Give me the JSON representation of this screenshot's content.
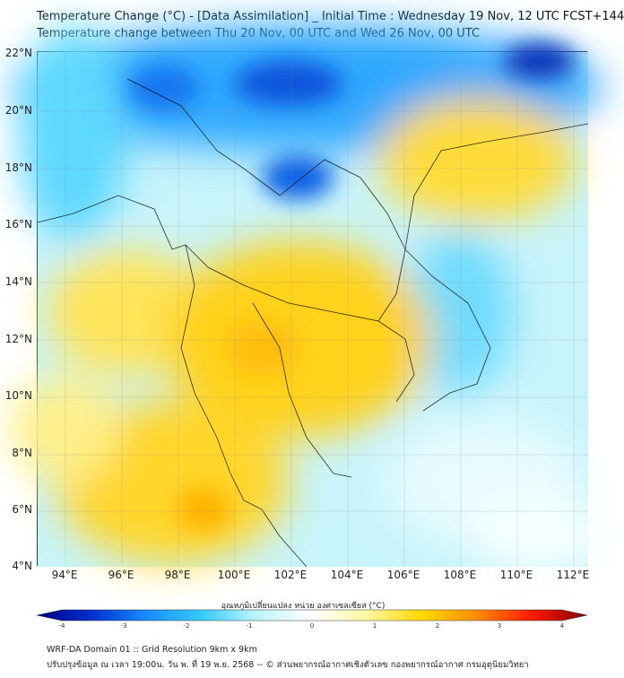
{
  "title_line1": "Temperature Change (°C) - [Data Assimilation] _ Initial Time : Wednesday 19 Nov, 12 UTC FCST+144",
  "title_line2": "Temperature change between Thu 20 Nov, 00 UTC and Wed 26 Nov, 00 UTC",
  "lat_labels": [
    "22°N",
    "20°N",
    "18°N",
    "16°N",
    "14°N",
    "12°N",
    "10°N",
    "8°N",
    "6°N",
    "4°N"
  ],
  "lon_labels": [
    "94°E",
    "96°E",
    "98°E",
    "100°E",
    "102°E",
    "104°E",
    "106°E",
    "108°E",
    "110°E",
    "112°E"
  ],
  "colorbar": {
    "label": "อุณหภูมิเปลี่ยนแปลง หน่วย องศาเซลเซียส (°C)",
    "ticks": [
      "-4",
      "-3",
      "-2",
      "-1",
      "0",
      "1",
      "2",
      "3",
      "4"
    ],
    "colors": [
      "#00007f",
      "#0030d0",
      "#1a8cff",
      "#33ccff",
      "#bff4ff",
      "#ffffff",
      "#fff7a0",
      "#ffd800",
      "#ff8c00",
      "#ff1a00",
      "#7f0000"
    ]
  },
  "footer_line1": "WRF-DA Domain 01 :: Grid Resolution 9km x 9km",
  "footer_line2": "ปรับปรุงข้อมูล ณ เวลา 19:00น. วัน พ. ที่ 19 พ.ย. 2568 -- © ส่วนพยากรณ์อากาศเชิงตัวเลข กองพยากรณ์อากาศ กรมอุตุนิยมวิทยา"
}
